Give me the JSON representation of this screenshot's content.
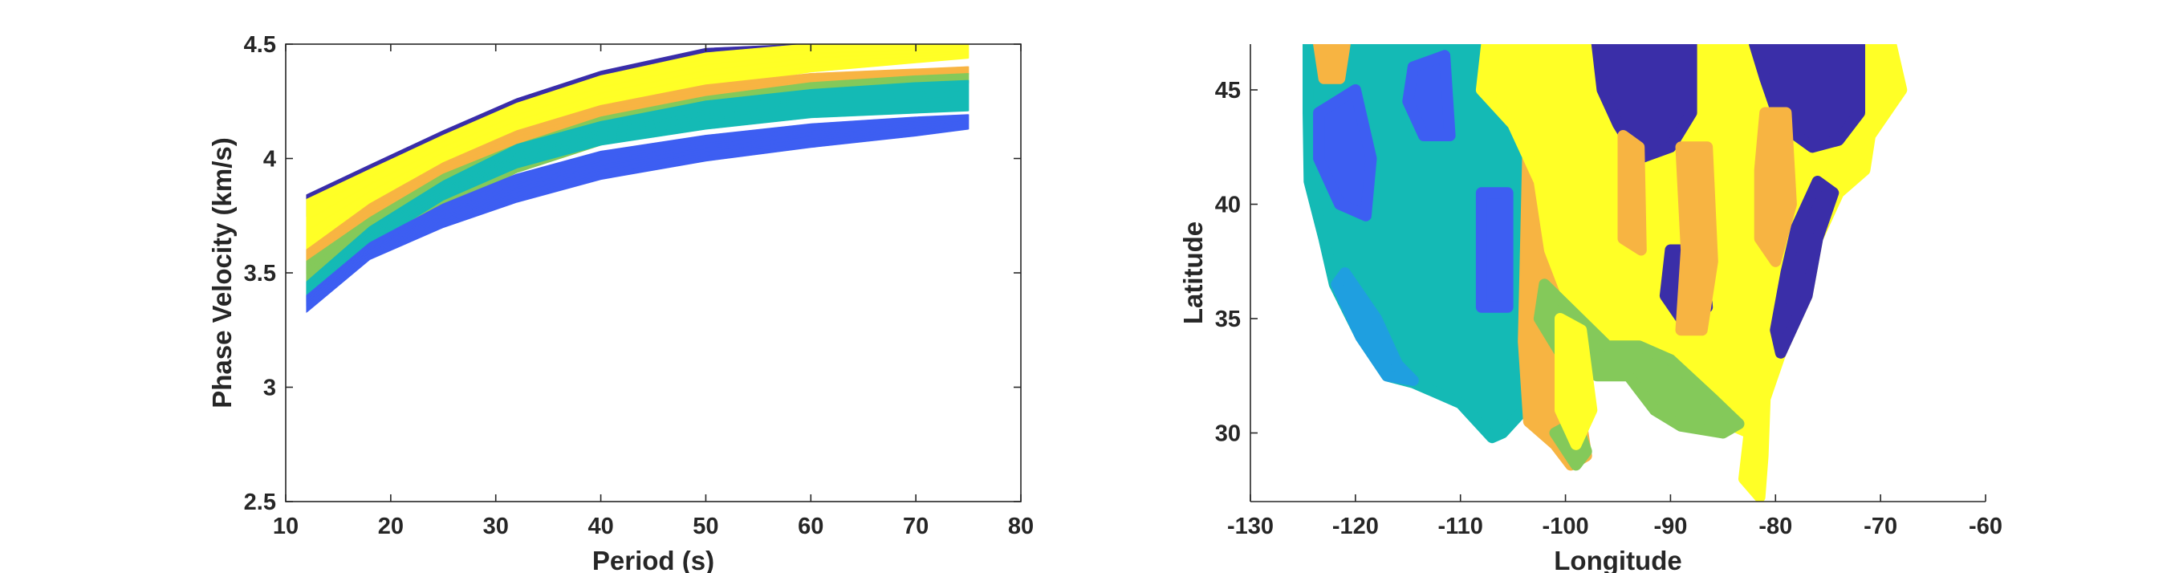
{
  "chart_data": [
    {
      "type": "line",
      "xlabel": "Period (s)",
      "ylabel": "Phase Velocity (km/s)",
      "xlim": [
        10,
        80
      ],
      "ylim": [
        2.5,
        4.5
      ],
      "xticks": [
        "10",
        "20",
        "30",
        "40",
        "50",
        "60",
        "70",
        "80"
      ],
      "yticks": [
        "2.5",
        "3",
        "3.5",
        "4",
        "4.5"
      ],
      "x": [
        12,
        18,
        25,
        32,
        40,
        50,
        60,
        70,
        75
      ],
      "series": [
        {
          "color": "#3a2ea8",
          "lower": [
            3.75,
            3.9,
            4.06,
            4.2,
            4.32,
            4.43,
            4.5,
            4.5,
            4.5
          ],
          "upper": [
            3.84,
            3.97,
            4.12,
            4.26,
            4.38,
            4.48,
            4.5,
            4.5,
            4.5
          ]
        },
        {
          "color": "#ffff26",
          "lower": [
            3.55,
            3.76,
            3.95,
            4.09,
            4.21,
            4.31,
            4.38,
            4.42,
            4.44
          ],
          "upper": [
            3.82,
            3.95,
            4.1,
            4.24,
            4.36,
            4.46,
            4.5,
            4.5,
            4.5
          ]
        },
        {
          "color": "#f7b442",
          "lower": [
            3.5,
            3.7,
            3.88,
            4.02,
            4.14,
            4.25,
            4.32,
            4.36,
            4.37
          ],
          "upper": [
            3.6,
            3.8,
            3.98,
            4.12,
            4.23,
            4.32,
            4.37,
            4.39,
            4.4
          ]
        },
        {
          "color": "#84c95a",
          "lower": [
            3.38,
            3.6,
            3.78,
            3.94,
            4.06,
            4.18,
            4.26,
            4.31,
            4.33
          ],
          "upper": [
            3.55,
            3.74,
            3.93,
            4.06,
            4.18,
            4.27,
            4.33,
            4.36,
            4.37
          ]
        },
        {
          "color": "#14bab5",
          "lower": [
            3.36,
            3.62,
            3.82,
            3.96,
            4.06,
            4.13,
            4.18,
            4.2,
            4.21
          ],
          "upper": [
            3.46,
            3.7,
            3.9,
            4.06,
            4.16,
            4.25,
            4.3,
            4.33,
            4.34
          ]
        },
        {
          "color": "#3d5ef2",
          "lower": [
            3.33,
            3.56,
            3.7,
            3.81,
            3.91,
            3.99,
            4.05,
            4.1,
            4.13
          ],
          "upper": [
            3.4,
            3.63,
            3.8,
            3.93,
            4.03,
            4.1,
            4.15,
            4.18,
            4.19
          ]
        }
      ]
    },
    {
      "type": "heatmap",
      "xlabel": "Longitude",
      "ylabel": "Latitude",
      "xlim": [
        -130,
        -60
      ],
      "ylim": [
        27,
        47
      ],
      "xticks": [
        "-130",
        "-120",
        "-110",
        "-100",
        "-90",
        "-80",
        "-70",
        "-60"
      ],
      "yticks": [
        "30",
        "35",
        "40",
        "45"
      ],
      "colors": [
        "#3a2ea8",
        "#3d5ef2",
        "#1f9fe0",
        "#14bab5",
        "#84c95a",
        "#f7b442",
        "#ffff26"
      ],
      "regions": [
        {
          "color": "#14bab5",
          "points": [
            [
              -124.5,
              47
            ],
            [
              -103,
              47
            ],
            [
              -102,
              41
            ],
            [
              -104,
              35
            ],
            [
              -104,
              31
            ],
            [
              -106,
              30
            ],
            [
              -107,
              29.8
            ],
            [
              -110,
              31.3
            ],
            [
              -114.5,
              32.2
            ],
            [
              -117,
              32.5
            ],
            [
              -119.5,
              34.2
            ],
            [
              -122,
              36.5
            ],
            [
              -123,
              38.5
            ],
            [
              -124.4,
              41
            ],
            [
              -124.5,
              44
            ]
          ]
        },
        {
          "color": "#1f9fe0",
          "points": [
            [
              -121,
              37
            ],
            [
              -118,
              35
            ],
            [
              -116,
              33
            ],
            [
              -114.5,
              32.3
            ],
            [
              -117,
              32.5
            ],
            [
              -119.5,
              34.2
            ],
            [
              -121.8,
              36.5
            ]
          ]
        },
        {
          "color": "#3d5ef2",
          "points": [
            [
              -123.5,
              44
            ],
            [
              -120,
              45
            ],
            [
              -118.5,
              42
            ],
            [
              -119,
              39.5
            ],
            [
              -121.5,
              40
            ],
            [
              -123.5,
              42
            ]
          ]
        },
        {
          "color": "#3d5ef2",
          "points": [
            [
              -114.5,
              46
            ],
            [
              -111.5,
              46.5
            ],
            [
              -111,
              43
            ],
            [
              -113.5,
              43
            ],
            [
              -115,
              44.5
            ]
          ]
        },
        {
          "color": "#3d5ef2",
          "points": [
            [
              -108,
              40.5
            ],
            [
              -105.5,
              40.5
            ],
            [
              -105.5,
              35.5
            ],
            [
              -108,
              35.5
            ]
          ]
        },
        {
          "color": "#f7b442",
          "points": [
            [
              -103.5,
              44
            ],
            [
              -100.5,
              44
            ],
            [
              -99.5,
              38
            ],
            [
              -99,
              32
            ],
            [
              -98,
              29
            ],
            [
              -99.5,
              28.6
            ],
            [
              -101,
              29.5
            ],
            [
              -103.5,
              30.5
            ],
            [
              -104,
              34
            ]
          ]
        },
        {
          "color": "#ffff26",
          "points": [
            [
              -107.5,
              47
            ],
            [
              -97,
              47
            ],
            [
              -96,
              44
            ],
            [
              -90,
              47
            ],
            [
              -69,
              47
            ],
            [
              -68,
              45
            ],
            [
              -71,
              43
            ],
            [
              -71.5,
              41.5
            ],
            [
              -74,
              40.5
            ],
            [
              -76,
              38.5
            ],
            [
              -77,
              36
            ],
            [
              -79.5,
              33.5
            ],
            [
              -81,
              31.5
            ],
            [
              -81.2,
              29
            ],
            [
              -81.5,
              27.2
            ],
            [
              -83,
              28
            ],
            [
              -82.5,
              30
            ],
            [
              -85,
              30.5
            ],
            [
              -89,
              30.5
            ],
            [
              -91,
              31.5
            ],
            [
              -94,
              33.5
            ],
            [
              -97,
              33
            ],
            [
              -99,
              35
            ],
            [
              -101.5,
              38
            ],
            [
              -102.5,
              41
            ],
            [
              -105,
              43.5
            ],
            [
              -108,
              45
            ]
          ]
        },
        {
          "color": "#84c95a",
          "points": [
            [
              -102,
              36.5
            ],
            [
              -96,
              33.8
            ],
            [
              -93,
              33.8
            ],
            [
              -90,
              33.2
            ],
            [
              -86,
              31.5
            ],
            [
              -83.5,
              30.4
            ],
            [
              -85,
              30
            ],
            [
              -89,
              30.3
            ],
            [
              -91.5,
              31
            ],
            [
              -94,
              32.5
            ],
            [
              -97,
              32.5
            ],
            [
              -100.5,
              33.5
            ],
            [
              -102.5,
              35
            ]
          ]
        },
        {
          "color": "#84c95a",
          "points": [
            [
              -101,
              30
            ],
            [
              -99,
              28.6
            ],
            [
              -98,
              29.2
            ],
            [
              -99,
              30.5
            ]
          ]
        },
        {
          "color": "#ffff26",
          "points": [
            [
              -100.5,
              35
            ],
            [
              -98.5,
              34.5
            ],
            [
              -97.5,
              31
            ],
            [
              -99,
              29.5
            ],
            [
              -100.5,
              31
            ]
          ]
        },
        {
          "color": "#3a2ea8",
          "points": [
            [
              -97,
              47
            ],
            [
              -88,
              47
            ],
            [
              -88,
              44
            ],
            [
              -90,
              42.5
            ],
            [
              -93,
              42
            ],
            [
              -95,
              43.5
            ],
            [
              -96.5,
              45
            ]
          ]
        },
        {
          "color": "#3a2ea8",
          "points": [
            [
              -82,
              47
            ],
            [
              -72,
              47
            ],
            [
              -72,
              44
            ],
            [
              -74,
              42.8
            ],
            [
              -76.5,
              42.5
            ],
            [
              -79.5,
              43.5
            ],
            [
              -81,
              45.5
            ]
          ]
        },
        {
          "color": "#3a2ea8",
          "points": [
            [
              -76,
              41
            ],
            [
              -74.5,
              40.5
            ],
            [
              -76,
              38.5
            ],
            [
              -77,
              36
            ],
            [
              -79.5,
              33.5
            ],
            [
              -80,
              34.5
            ],
            [
              -79,
              37
            ],
            [
              -78,
              39
            ]
          ]
        },
        {
          "color": "#3a2ea8",
          "points": [
            [
              -90,
              38
            ],
            [
              -87,
              38
            ],
            [
              -86.5,
              35.5
            ],
            [
              -89,
              35
            ],
            [
              -90.5,
              36
            ]
          ]
        },
        {
          "color": "#f7b442",
          "points": [
            [
              -89,
              42.5
            ],
            [
              -86.5,
              42.5
            ],
            [
              -86,
              37.5
            ],
            [
              -87,
              34.5
            ],
            [
              -89,
              34.5
            ],
            [
              -88.5,
              38
            ]
          ]
        },
        {
          "color": "#f7b442",
          "points": [
            [
              -81,
              44
            ],
            [
              -79,
              44
            ],
            [
              -78.5,
              40
            ],
            [
              -80,
              37.5
            ],
            [
              -81.5,
              38.5
            ],
            [
              -81.5,
              41.5
            ]
          ]
        },
        {
          "color": "#f7b442",
          "points": [
            [
              -94.5,
              43
            ],
            [
              -93,
              42.5
            ],
            [
              -92.8,
              38
            ],
            [
              -94.5,
              38.5
            ]
          ]
        },
        {
          "color": "#f7b442",
          "points": [
            [
              -123.5,
              47
            ],
            [
              -121,
              47
            ],
            [
              -121.5,
              45.5
            ],
            [
              -123,
              45.5
            ]
          ]
        }
      ]
    }
  ]
}
